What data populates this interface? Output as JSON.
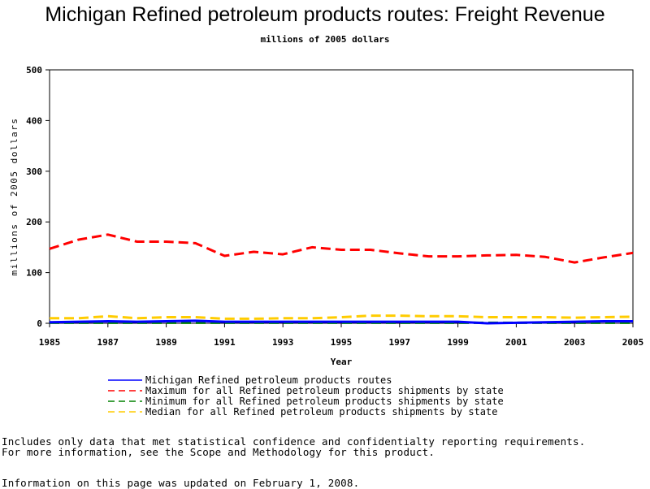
{
  "page": {
    "title": "Michigan Refined petroleum products routes: Freight Revenue",
    "subtitle": "millions of 2005 dollars",
    "notes": [
      "Includes only data that met statistical confidence and confidentialty reporting requirements.",
      "For more information, see the Scope and Methodology for this product."
    ],
    "updated": "Information on this page was updated on February 1, 2008."
  },
  "chart_data": {
    "type": "line",
    "title": "Michigan Refined petroleum products routes: Freight Revenue",
    "subtitle": "millions of 2005 dollars",
    "xlabel": "Year",
    "ylabel": "millions of 2005 dollars",
    "xlim": [
      1985,
      2005
    ],
    "ylim": [
      0,
      500
    ],
    "xticks": [
      1985,
      1987,
      1989,
      1991,
      1993,
      1995,
      1997,
      1999,
      2001,
      2003,
      2005
    ],
    "yticks": [
      0,
      100,
      200,
      300,
      400,
      500
    ],
    "grid": false,
    "legend_position": "bottom",
    "x": [
      1985,
      1986,
      1987,
      1988,
      1989,
      1990,
      1991,
      1992,
      1993,
      1994,
      1995,
      1996,
      1997,
      1998,
      1999,
      2000,
      2001,
      2002,
      2003,
      2004,
      2005
    ],
    "series": [
      {
        "name": "Michigan Refined petroleum products routes",
        "color": "#0000ff",
        "dash": "solid",
        "x": [
          1985,
          1986,
          1987,
          1988,
          1989,
          1990,
          1991,
          1999,
          2000,
          2003,
          2004,
          2005
        ],
        "values": [
          2,
          3,
          4,
          3,
          4,
          5,
          3,
          3,
          0,
          3,
          4,
          4
        ]
      },
      {
        "name": "Maximum for all Refined petroleum products shipments by state",
        "color": "#ff0000",
        "dash": "dashed",
        "values": [
          147,
          165,
          175,
          161,
          161,
          158,
          133,
          141,
          136,
          150,
          145,
          145,
          138,
          132,
          132,
          134,
          135,
          131,
          120,
          130,
          139
        ]
      },
      {
        "name": "Minimum for all Refined petroleum products shipments by state",
        "color": "#008000",
        "dash": "dashed",
        "values": [
          1,
          1,
          1,
          1,
          1,
          1,
          1,
          1,
          1,
          1,
          1,
          1,
          1,
          1,
          1,
          1,
          1,
          1,
          1,
          1,
          1
        ]
      },
      {
        "name": "Median for all Refined petroleum products shipments by state",
        "color": "#ffcc00",
        "dash": "dashed",
        "values": [
          10,
          10,
          14,
          10,
          12,
          12,
          9,
          9,
          10,
          10,
          12,
          15,
          15,
          14,
          14,
          12,
          12,
          12,
          11,
          12,
          13
        ]
      }
    ]
  }
}
